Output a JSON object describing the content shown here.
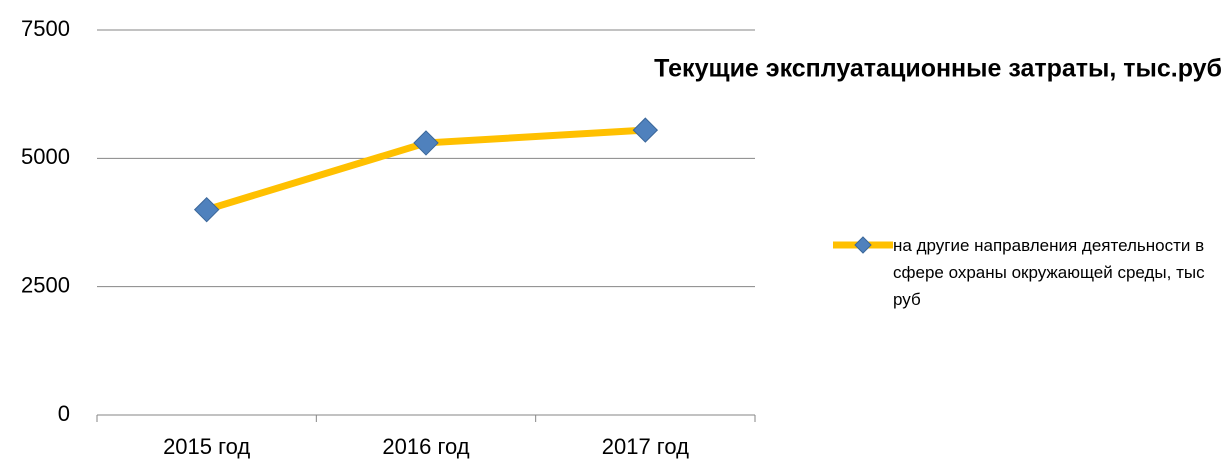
{
  "chart_data": {
    "type": "line",
    "title": "Текущие эксплуатационные затраты, тыс.руб",
    "categories": [
      "2015 год",
      "2016 год",
      "2017 год"
    ],
    "series": [
      {
        "name": "на другие направления деятельности в сфере охраны окружающей среды, тыс руб",
        "color": "#FFC000",
        "marker_color": "#4F81BD",
        "values": [
          4000,
          5300,
          5550
        ]
      }
    ],
    "ylim": [
      0,
      7500
    ],
    "yticks": [
      0,
      2500,
      5000,
      7500
    ],
    "grid": true,
    "legend": "right"
  }
}
